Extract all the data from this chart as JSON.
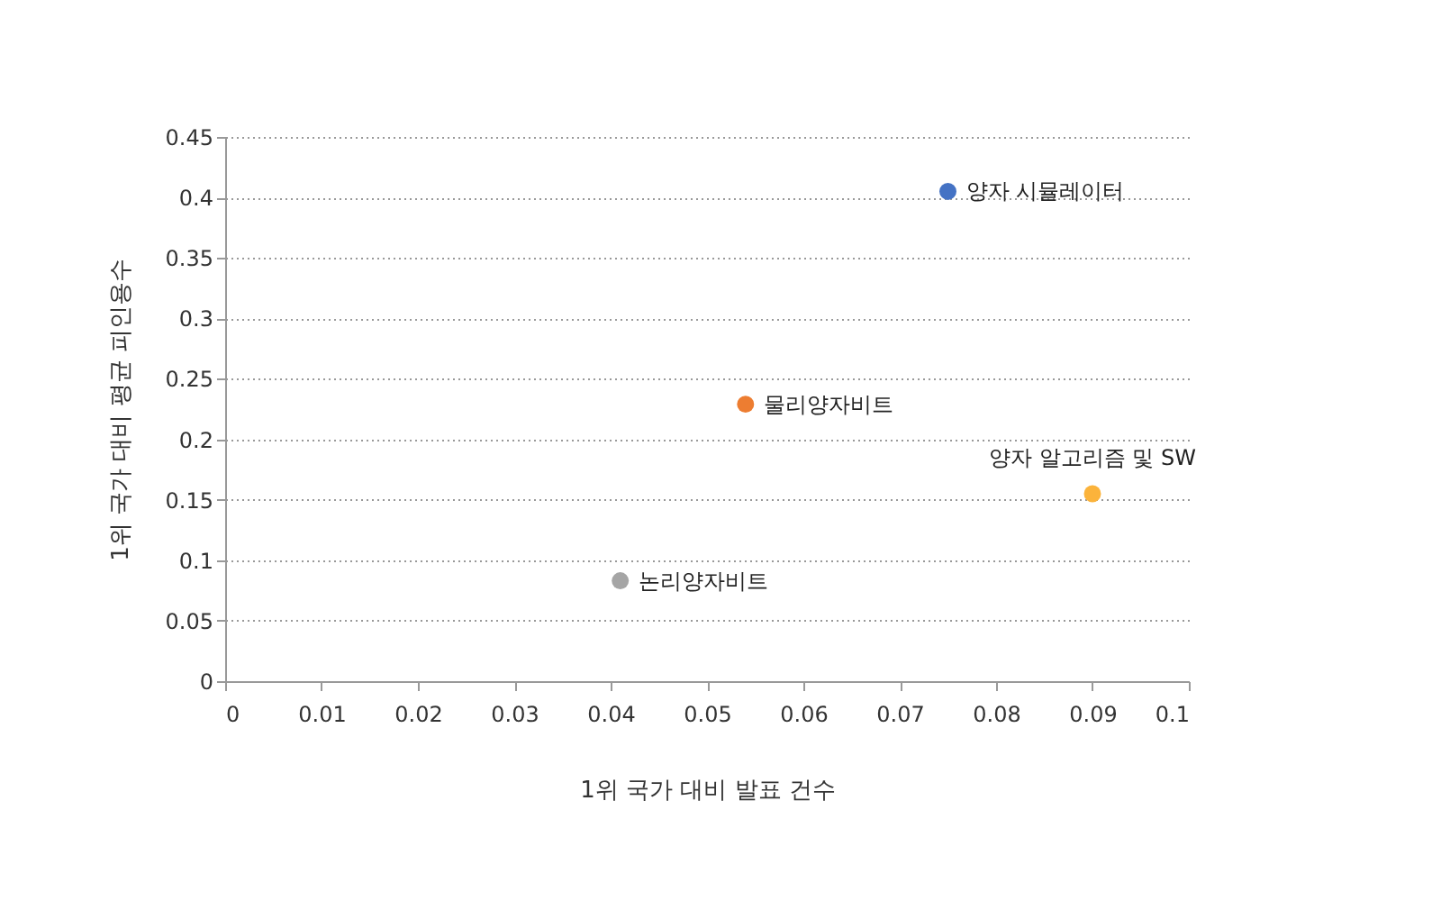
{
  "chart_data": {
    "type": "scatter",
    "xlabel": "1위 국가 대비 발표 건수",
    "ylabel": "1위 국가 대비 평균 피인용수",
    "xlim": [
      0,
      0.1
    ],
    "xticks": [
      0,
      0.01,
      0.02,
      0.03,
      0.04,
      0.05,
      0.06,
      0.07,
      0.08,
      0.09,
      0.1
    ],
    "ylim": [
      0,
      0.45
    ],
    "yticks": [
      0,
      0.05,
      0.1,
      0.15,
      0.2,
      0.25,
      0.3,
      0.35,
      0.4,
      0.45
    ],
    "grid": "y",
    "marker": "circle",
    "legend": false,
    "series": [
      {
        "name": "양자 시뮬레이터",
        "color": "#4472c4",
        "x": [
          0.075
        ],
        "values": [
          0.405
        ]
      },
      {
        "name": "물리양자비트",
        "color": "#ed7d31",
        "x": [
          0.054
        ],
        "values": [
          0.229
        ]
      },
      {
        "name": "양자 알고리즘 및 SW",
        "color": "#fbb33b",
        "x": [
          0.09
        ],
        "values": [
          0.155
        ]
      },
      {
        "name": "논리양자비트",
        "color": "#a5a5a5",
        "x": [
          0.041
        ],
        "values": [
          0.083
        ]
      }
    ]
  }
}
